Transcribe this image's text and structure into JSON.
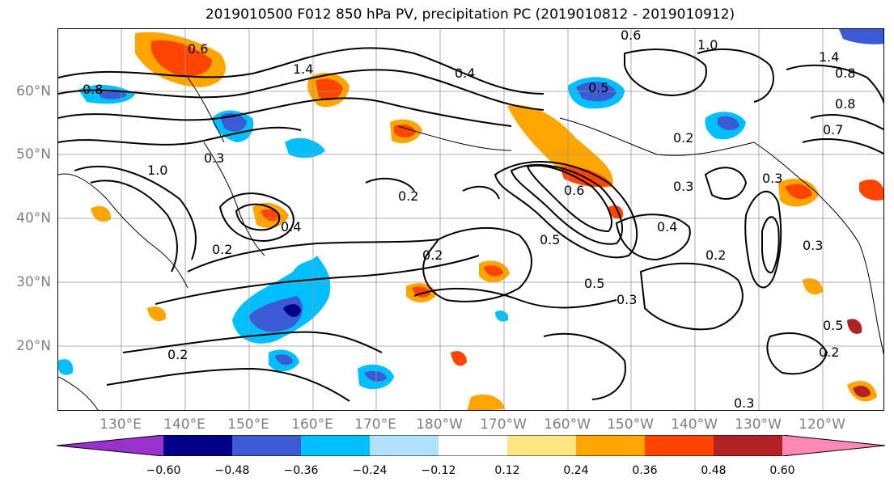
{
  "title": "2019010500 F012 850 hPa PV, precipitation PC (2019010812 - 2019010912)",
  "lat_labels": [
    "60°N",
    "50°N",
    "40°N",
    "30°N",
    "20°N"
  ],
  "lon_labels": [
    "130°E",
    "140°E",
    "150°E",
    "160°E",
    "170°E",
    "180°W",
    "170°W",
    "160°W",
    "150°W",
    "140°W",
    "130°W",
    "120°W"
  ],
  "colorbar": {
    "tick_labels": [
      "−0.60",
      "−0.48",
      "−0.36",
      "−0.24",
      "−0.12",
      "0.12",
      "0.24",
      "0.36",
      "0.48",
      "0.60"
    ],
    "colors": [
      "#9932cc",
      "#00008b",
      "#3a5bd4",
      "#00bfff",
      "#b0e2ff",
      "#ffffff",
      "#ffe682",
      "#ffa500",
      "#ff4500",
      "#b22222",
      "#ff88b4"
    ]
  },
  "contour_labels": [
    "0.6",
    "0.8",
    "1.0",
    "1.4",
    "0.4",
    "0.5",
    "0.6",
    "0.2",
    "0.6",
    "0.5",
    "0.3",
    "0.4",
    "0.2",
    "0.2",
    "0.5",
    "0.3",
    "0.2",
    "0.3",
    "0.3",
    "0.2",
    "0.4",
    "0.5",
    "0.8",
    "0.7",
    "0.3",
    "0.2",
    "0.3",
    "0.2",
    "0.8",
    "1.0",
    "1.4"
  ]
}
